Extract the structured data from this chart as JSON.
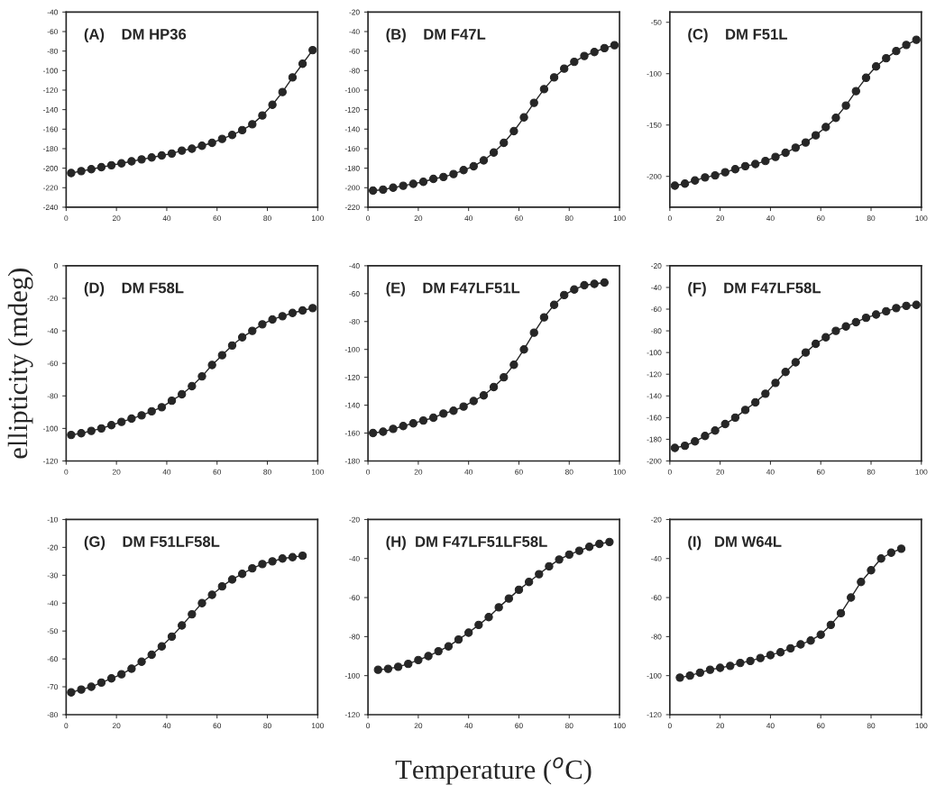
{
  "chart_data": [
    {
      "type": "line",
      "title": "(A)    DM HP36",
      "marker": "circle",
      "xlim": [
        0,
        100
      ],
      "xticks": [
        0,
        20,
        40,
        60,
        80,
        100
      ],
      "ylim": [
        -240,
        -40
      ],
      "yticks": [
        -240,
        -220,
        -200,
        -180,
        -160,
        -140,
        -120,
        -100,
        -80,
        -60,
        -40
      ],
      "grid": false,
      "series": [
        {
          "color": "#262626",
          "x": [
            2,
            6,
            10,
            14,
            18,
            22,
            26,
            30,
            34,
            38,
            42,
            46,
            50,
            54,
            58,
            62,
            66,
            70,
            74,
            78,
            82,
            86,
            90,
            94,
            98
          ],
          "values": [
            -205,
            -203,
            -201,
            -199,
            -197,
            -195,
            -193,
            -191,
            -189,
            -187,
            -185,
            -182,
            -180,
            -177,
            -174,
            -170,
            -166,
            -161,
            -155,
            -146,
            -135,
            -122,
            -107,
            -93,
            -79
          ]
        }
      ]
    },
    {
      "type": "line",
      "title": "(B)    DM F47L",
      "marker": "circle",
      "xlim": [
        0,
        100
      ],
      "xticks": [
        0,
        20,
        40,
        60,
        80,
        100
      ],
      "ylim": [
        -220,
        -20
      ],
      "yticks": [
        -220,
        -200,
        -180,
        -160,
        -140,
        -120,
        -100,
        -80,
        -60,
        -40,
        -20
      ],
      "grid": false,
      "series": [
        {
          "color": "#262626",
          "x": [
            2,
            6,
            10,
            14,
            18,
            22,
            26,
            30,
            34,
            38,
            42,
            46,
            50,
            54,
            58,
            62,
            66,
            70,
            74,
            78,
            82,
            86,
            90,
            94,
            98
          ],
          "values": [
            -203,
            -202,
            -200,
            -198,
            -196,
            -194,
            -191,
            -189,
            -186,
            -182,
            -178,
            -172,
            -164,
            -154,
            -142,
            -128,
            -113,
            -99,
            -87,
            -78,
            -71,
            -65,
            -61,
            -57,
            -54
          ]
        }
      ]
    },
    {
      "type": "line",
      "title": "(C)    DM F51L",
      "marker": "circle",
      "xlim": [
        0,
        100
      ],
      "xticks": [
        0,
        20,
        40,
        60,
        80,
        100
      ],
      "ylim": [
        -230,
        -40
      ],
      "yticks": [
        -200,
        -150,
        -100,
        -50
      ],
      "grid": false,
      "series": [
        {
          "color": "#262626",
          "x": [
            2,
            6,
            10,
            14,
            18,
            22,
            26,
            30,
            34,
            38,
            42,
            46,
            50,
            54,
            58,
            62,
            66,
            70,
            74,
            78,
            82,
            86,
            90,
            94,
            98
          ],
          "values": [
            -209,
            -207,
            -204,
            -201,
            -199,
            -196,
            -193,
            -190,
            -188,
            -185,
            -181,
            -177,
            -172,
            -167,
            -160,
            -152,
            -143,
            -131,
            -117,
            -104,
            -93,
            -85,
            -78,
            -72,
            -67
          ]
        }
      ]
    },
    {
      "type": "line",
      "title": "(D)    DM F58L",
      "ylabel": "ellipticity (mdeg)",
      "marker": "circle",
      "xlim": [
        0,
        100
      ],
      "xticks": [
        0,
        20,
        40,
        60,
        80,
        100
      ],
      "ylim": [
        -120,
        0
      ],
      "yticks": [
        -120,
        -100,
        -80,
        -60,
        -40,
        -20,
        0
      ],
      "grid": false,
      "series": [
        {
          "color": "#262626",
          "x": [
            2,
            6,
            10,
            14,
            18,
            22,
            26,
            30,
            34,
            38,
            42,
            46,
            50,
            54,
            58,
            62,
            66,
            70,
            74,
            78,
            82,
            86,
            90,
            94,
            98
          ],
          "values": [
            -104,
            -103,
            -101.5,
            -100,
            -98,
            -96,
            -94,
            -92,
            -89.5,
            -87,
            -83,
            -79,
            -74,
            -68,
            -61,
            -55,
            -49,
            -44,
            -40,
            -36,
            -33,
            -31,
            -29,
            -27.5,
            -26
          ]
        }
      ]
    },
    {
      "type": "line",
      "title": "(E)    DM F47LF51L",
      "marker": "circle",
      "xlim": [
        0,
        100
      ],
      "xticks": [
        0,
        20,
        40,
        60,
        80,
        100
      ],
      "ylim": [
        -180,
        -40
      ],
      "yticks": [
        -180,
        -160,
        -140,
        -120,
        -100,
        -80,
        -60,
        -40
      ],
      "grid": false,
      "series": [
        {
          "color": "#262626",
          "x": [
            2,
            6,
            10,
            14,
            18,
            22,
            26,
            30,
            34,
            38,
            42,
            46,
            50,
            54,
            58,
            62,
            66,
            70,
            74,
            78,
            82,
            86,
            90,
            94
          ],
          "values": [
            -160,
            -159,
            -157,
            -155,
            -153,
            -151,
            -149,
            -146,
            -144,
            -141,
            -137,
            -133,
            -127,
            -120,
            -111,
            -100,
            -88,
            -77,
            -68,
            -61,
            -57,
            -54,
            -53,
            -52
          ]
        }
      ]
    },
    {
      "type": "line",
      "title": "(F)    DM F47LF58L",
      "marker": "circle",
      "xlim": [
        0,
        100
      ],
      "xticks": [
        0,
        20,
        40,
        60,
        80,
        100
      ],
      "ylim": [
        -200,
        -20
      ],
      "yticks": [
        -200,
        -180,
        -160,
        -140,
        -120,
        -100,
        -80,
        -60,
        -40,
        -20
      ],
      "grid": false,
      "series": [
        {
          "color": "#262626",
          "x": [
            2,
            6,
            10,
            14,
            18,
            22,
            26,
            30,
            34,
            38,
            42,
            46,
            50,
            54,
            58,
            62,
            66,
            70,
            74,
            78,
            82,
            86,
            90,
            94,
            98
          ],
          "values": [
            -188,
            -186,
            -182,
            -177,
            -172,
            -166,
            -160,
            -153,
            -146,
            -138,
            -128,
            -118,
            -109,
            -100,
            -92,
            -86,
            -80,
            -76,
            -72,
            -68,
            -65,
            -62,
            -59,
            -57,
            -56
          ]
        }
      ]
    },
    {
      "type": "line",
      "title": "(G)    DM F51LF58L",
      "marker": "circle",
      "xlim": [
        0,
        100
      ],
      "xticks": [
        0,
        20,
        40,
        60,
        80,
        100
      ],
      "ylim": [
        -80,
        -10
      ],
      "yticks": [
        -80,
        -70,
        -60,
        -50,
        -40,
        -30,
        -20,
        -10
      ],
      "grid": false,
      "series": [
        {
          "color": "#262626",
          "x": [
            2,
            6,
            10,
            14,
            18,
            22,
            26,
            30,
            34,
            38,
            42,
            46,
            50,
            54,
            58,
            62,
            66,
            70,
            74,
            78,
            82,
            86,
            90,
            94
          ],
          "values": [
            -72,
            -71,
            -70,
            -68.5,
            -67,
            -65.5,
            -63.5,
            -61,
            -58.5,
            -55.5,
            -52,
            -48,
            -44,
            -40,
            -37,
            -34,
            -31.5,
            -29.5,
            -27.5,
            -26,
            -25,
            -24,
            -23.5,
            -23
          ]
        }
      ]
    },
    {
      "type": "line",
      "title": "(H)  DM F47LF51LF58L",
      "xlabel": "Temperature ($^{o}$C)",
      "marker": "circle",
      "xlim": [
        0,
        100
      ],
      "xticks": [
        0,
        20,
        40,
        60,
        80,
        100
      ],
      "ylim": [
        -120,
        -20
      ],
      "yticks": [
        -120,
        -100,
        -80,
        -60,
        -40,
        -20
      ],
      "grid": false,
      "series": [
        {
          "color": "#262626",
          "x": [
            4,
            8,
            12,
            16,
            20,
            24,
            28,
            32,
            36,
            40,
            44,
            48,
            52,
            56,
            60,
            64,
            68,
            72,
            76,
            80,
            84,
            88,
            92,
            96
          ],
          "values": [
            -97,
            -96.5,
            -95.5,
            -94,
            -92,
            -90,
            -87.5,
            -85,
            -81.5,
            -78,
            -74,
            -70,
            -65,
            -60.5,
            -56,
            -52,
            -48,
            -44,
            -40.5,
            -38,
            -36,
            -34,
            -32.5,
            -31.5
          ]
        }
      ]
    },
    {
      "type": "line",
      "title": "(I)   DM W64L",
      "marker": "circle",
      "xlim": [
        0,
        100
      ],
      "xticks": [
        0,
        20,
        40,
        60,
        80,
        100
      ],
      "ylim": [
        -120,
        -20
      ],
      "yticks": [
        -120,
        -100,
        -80,
        -60,
        -40,
        -20
      ],
      "grid": false,
      "series": [
        {
          "color": "#262626",
          "x": [
            4,
            8,
            12,
            16,
            20,
            24,
            28,
            32,
            36,
            40,
            44,
            48,
            52,
            56,
            60,
            64,
            68,
            72,
            76,
            80,
            84,
            88,
            92
          ],
          "values": [
            -101,
            -100,
            -98.5,
            -97,
            -96,
            -95,
            -93.5,
            -92.5,
            -91,
            -89.5,
            -88,
            -86,
            -84,
            -82,
            -79,
            -74,
            -68,
            -60,
            -52,
            -46,
            -40,
            -37,
            -35
          ]
        }
      ]
    }
  ]
}
